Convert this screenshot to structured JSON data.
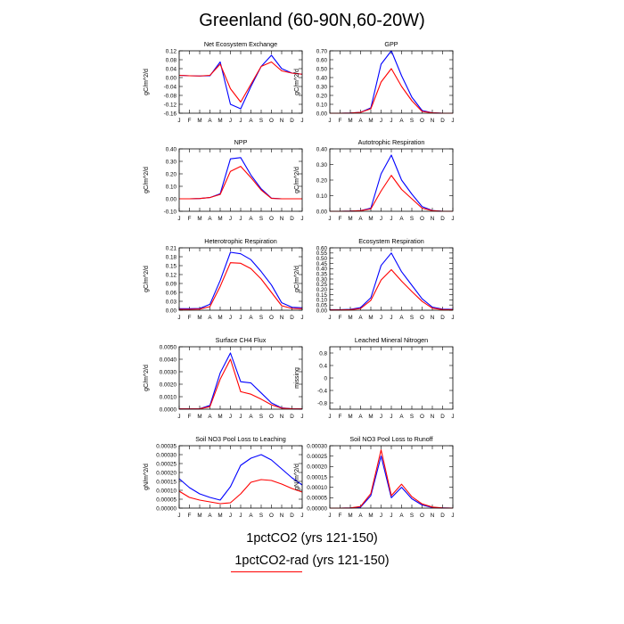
{
  "title": "Greenland (60-90N,60-20W)",
  "months": [
    "J",
    "F",
    "M",
    "A",
    "M",
    "J",
    "J",
    "A",
    "S",
    "O",
    "N",
    "D",
    "J"
  ],
  "colors": {
    "series_a": "#0000ff",
    "series_b": "#ff0000"
  },
  "legend": {
    "series_a": "1pctCO2 (yrs 121-150)",
    "series_b": "1pctCO2-rad (yrs 121-150)"
  },
  "chart_data": [
    {
      "type": "line",
      "title": "Net Ecosystem Exchange",
      "ylabel": "gC/m^2/d",
      "ylim": [
        -0.16,
        0.12
      ],
      "yticks": [
        "-0.16",
        "-0.12",
        "-0.08",
        "-0.04",
        "0.00",
        "0.04",
        "0.08",
        "0.12"
      ],
      "series": [
        {
          "values": [
            0.01,
            0.008,
            0.007,
            0.008,
            0.07,
            -0.12,
            -0.14,
            -0.04,
            0.05,
            0.1,
            0.04,
            0.02,
            0.015
          ]
        },
        {
          "values": [
            0.01,
            0.008,
            0.007,
            0.01,
            0.06,
            -0.05,
            -0.11,
            -0.03,
            0.05,
            0.07,
            0.03,
            0.02,
            0.015
          ]
        }
      ]
    },
    {
      "type": "line",
      "title": "GPP",
      "ylabel": "gC/m^2/d",
      "ylim": [
        0,
        0.7
      ],
      "yticks": [
        "0.00",
        "0.10",
        "0.20",
        "0.30",
        "0.40",
        "0.50",
        "0.60",
        "0.70"
      ],
      "series": [
        {
          "values": [
            0.0,
            0.0,
            0.002,
            0.01,
            0.06,
            0.55,
            0.7,
            0.42,
            0.18,
            0.03,
            0.005,
            0.0,
            0.0
          ]
        },
        {
          "values": [
            0.0,
            0.0,
            0.002,
            0.01,
            0.05,
            0.35,
            0.5,
            0.3,
            0.14,
            0.02,
            0.004,
            0.0,
            0.0
          ]
        }
      ]
    },
    {
      "type": "line",
      "title": "NPP",
      "ylabel": "gC/m^2/d",
      "ylim": [
        -0.1,
        0.4
      ],
      "yticks": [
        "-0.10",
        "0.00",
        "0.10",
        "0.20",
        "0.30",
        "0.40"
      ],
      "series": [
        {
          "values": [
            0.0,
            0.0,
            0.002,
            0.01,
            0.04,
            0.32,
            0.33,
            0.19,
            0.08,
            0.005,
            0.0,
            0.0,
            0.0
          ]
        },
        {
          "values": [
            0.0,
            0.0,
            0.002,
            0.01,
            0.035,
            0.22,
            0.26,
            0.17,
            0.07,
            0.003,
            0.0,
            0.0,
            0.0
          ]
        }
      ]
    },
    {
      "type": "line",
      "title": "Autotrophic Respiration",
      "ylabel": "gC/m^2/d",
      "ylim": [
        0,
        0.4
      ],
      "yticks": [
        "0.00",
        "0.10",
        "0.20",
        "0.30",
        "0.40"
      ],
      "series": [
        {
          "values": [
            0.0,
            0.0,
            0.001,
            0.004,
            0.02,
            0.24,
            0.36,
            0.2,
            0.11,
            0.03,
            0.005,
            0.0,
            0.0
          ]
        },
        {
          "values": [
            0.0,
            0.0,
            0.001,
            0.004,
            0.015,
            0.13,
            0.23,
            0.14,
            0.08,
            0.02,
            0.004,
            0.0,
            0.0
          ]
        }
      ]
    },
    {
      "type": "line",
      "title": "Heterotrophic Respiration",
      "ylabel": "gC/m^2/d",
      "ylim": [
        0,
        0.21
      ],
      "yticks": [
        "0.00",
        "0.03",
        "0.06",
        "0.09",
        "0.12",
        "0.15",
        "0.18",
        "0.21"
      ],
      "series": [
        {
          "values": [
            0.005,
            0.005,
            0.006,
            0.02,
            0.1,
            0.195,
            0.19,
            0.17,
            0.13,
            0.085,
            0.025,
            0.01,
            0.008
          ]
        },
        {
          "values": [
            0.003,
            0.003,
            0.004,
            0.012,
            0.08,
            0.16,
            0.158,
            0.14,
            0.105,
            0.06,
            0.015,
            0.006,
            0.005
          ]
        }
      ]
    },
    {
      "type": "line",
      "title": "Ecosystem Respiration",
      "ylabel": "gC/m^2/d",
      "ylim": [
        0,
        0.6
      ],
      "yticks": [
        "0.00",
        "0.05",
        "0.10",
        "0.15",
        "0.20",
        "0.25",
        "0.30",
        "0.35",
        "0.40",
        "0.45",
        "0.50",
        "0.55",
        "0.60"
      ],
      "series": [
        {
          "values": [
            0.005,
            0.005,
            0.008,
            0.025,
            0.12,
            0.43,
            0.55,
            0.37,
            0.24,
            0.11,
            0.03,
            0.01,
            0.008
          ]
        },
        {
          "values": [
            0.003,
            0.003,
            0.005,
            0.016,
            0.095,
            0.29,
            0.39,
            0.28,
            0.18,
            0.085,
            0.02,
            0.006,
            0.005
          ]
        }
      ]
    },
    {
      "type": "line",
      "title": "Surface CH4 Flux",
      "ylabel": "gC/m^2/d",
      "ylim": [
        0,
        0.005
      ],
      "yticks": [
        "0.0000",
        "0.0010",
        "0.0020",
        "0.0030",
        "0.0040",
        "0.0050"
      ],
      "series": [
        {
          "values": [
            2e-05,
            2e-05,
            3e-05,
            0.0003,
            0.0029,
            0.0045,
            0.0022,
            0.0021,
            0.0013,
            0.0005,
            0.0001,
            3e-05,
            2e-05
          ]
        },
        {
          "values": [
            2e-05,
            2e-05,
            3e-05,
            0.0002,
            0.0024,
            0.004,
            0.0014,
            0.0012,
            0.0008,
            0.00035,
            8e-05,
            3e-05,
            2e-05
          ]
        }
      ]
    },
    {
      "type": "line",
      "title": "Leached Mineral Nitrogen",
      "ylabel": "missing",
      "ylim": [
        -1,
        1
      ],
      "yticks": [
        "-0.8",
        "-0.4",
        "0",
        "0.4",
        "0.8"
      ],
      "series": []
    },
    {
      "type": "line",
      "title": "Soil NO3 Pool Loss to Leaching",
      "ylabel": "gN/m^2/d",
      "ylim": [
        0,
        0.00035
      ],
      "yticks": [
        "0.00000",
        "0.00005",
        "0.00010",
        "0.00015",
        "0.00020",
        "0.00025",
        "0.00030",
        "0.00035"
      ],
      "series": [
        {
          "values": [
            0.000165,
            0.000115,
            8e-05,
            6e-05,
            4.5e-05,
            0.00012,
            0.00024,
            0.00028,
            0.0003,
            0.00027,
            0.00022,
            0.00017,
            0.00013
          ]
        },
        {
          "values": [
            9.5e-05,
            6e-05,
            4.5e-05,
            3.5e-05,
            2.5e-05,
            3e-05,
            8e-05,
            0.000145,
            0.00016,
            0.000155,
            0.000135,
            0.00011,
            9e-05
          ]
        }
      ]
    },
    {
      "type": "line",
      "title": "Soil NO3 Pool Loss to Runoff",
      "ylabel": "gN/m^2/d",
      "ylim": [
        0,
        0.0003
      ],
      "yticks": [
        "0.00000",
        "0.00005",
        "0.00010",
        "0.00015",
        "0.00020",
        "0.00025",
        "0.00030"
      ],
      "series": [
        {
          "values": [
            0.0,
            0.0,
            1e-06,
            5e-06,
            6e-05,
            0.00025,
            5e-05,
            0.0001,
            4.5e-05,
            1.5e-05,
            3e-06,
            1e-06,
            0.0
          ]
        },
        {
          "values": [
            0.0,
            0.0,
            1e-06,
            8e-06,
            7e-05,
            0.00028,
            6e-05,
            0.000115,
            5.5e-05,
            2e-05,
            5e-06,
            1e-06,
            0.0
          ]
        }
      ]
    }
  ]
}
